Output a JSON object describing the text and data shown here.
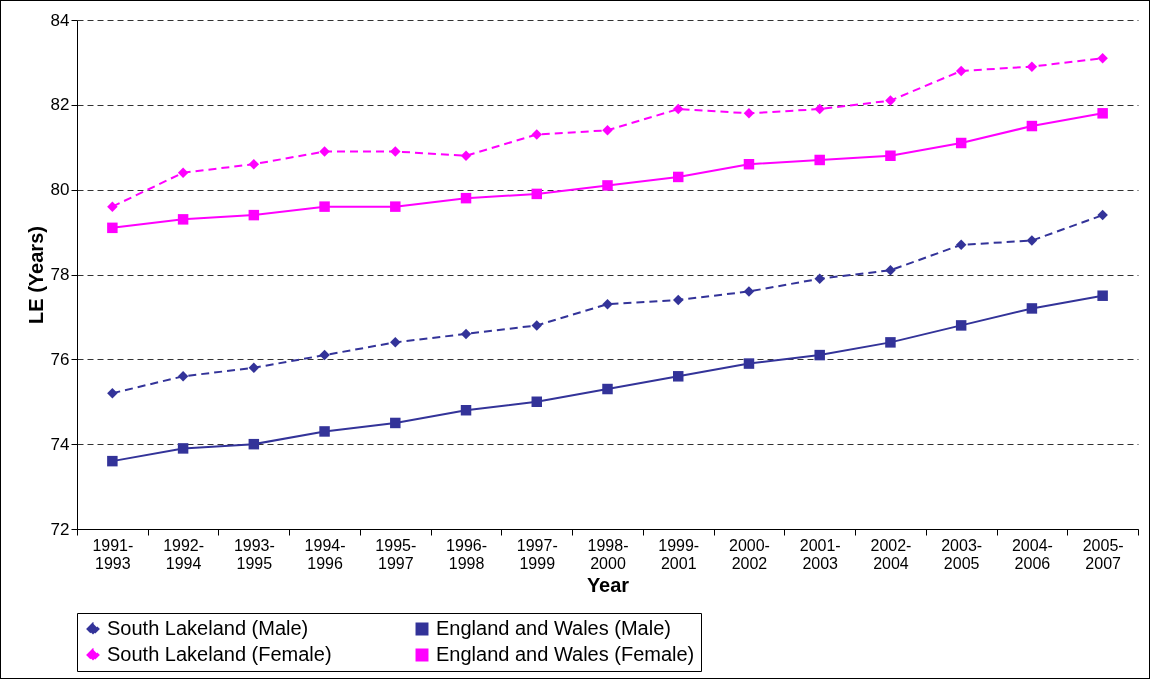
{
  "chart_data": {
    "type": "line",
    "xlabel": "Year",
    "ylabel": "LE (Years)",
    "categories": [
      "1991-1993",
      "1992-1994",
      "1993-1995",
      "1994-1996",
      "1995-1997",
      "1996-1998",
      "1997-1999",
      "1998-2000",
      "1999-2001",
      "2000-2002",
      "2001-2003",
      "2002-2004",
      "2003-2005",
      "2004-2006",
      "2005-2007"
    ],
    "series": [
      {
        "name": "South Lakeland (Male)",
        "color": "#333399",
        "line_style": "dashed",
        "marker": "diamond",
        "values": [
          75.2,
          75.6,
          75.8,
          76.1,
          76.4,
          76.6,
          76.8,
          77.3,
          77.4,
          77.6,
          77.9,
          78.1,
          78.7,
          78.8,
          79.4
        ]
      },
      {
        "name": "England and Wales (Male)",
        "color": "#333399",
        "line_style": "solid",
        "marker": "square",
        "values": [
          73.6,
          73.9,
          74.0,
          74.3,
          74.5,
          74.8,
          75.0,
          75.3,
          75.6,
          75.9,
          76.1,
          76.4,
          76.8,
          77.2,
          77.5
        ]
      },
      {
        "name": "South Lakeland (Female)",
        "color": "#ff00ff",
        "line_style": "dashed",
        "marker": "diamond",
        "values": [
          79.6,
          80.4,
          80.6,
          80.9,
          80.9,
          80.8,
          81.3,
          81.4,
          81.9,
          81.8,
          81.9,
          82.1,
          82.8,
          82.9,
          83.1
        ]
      },
      {
        "name": "England and Wales (Female)",
        "color": "#ff00ff",
        "line_style": "solid",
        "marker": "square",
        "values": [
          79.1,
          79.3,
          79.4,
          79.6,
          79.6,
          79.8,
          79.9,
          80.1,
          80.3,
          80.6,
          80.7,
          80.8,
          81.1,
          81.5,
          81.8
        ]
      }
    ],
    "ylim": [
      72,
      84
    ],
    "yticks": [
      72,
      74,
      76,
      78,
      80,
      82,
      84
    ],
    "grid": "y",
    "legend": "bottom"
  }
}
